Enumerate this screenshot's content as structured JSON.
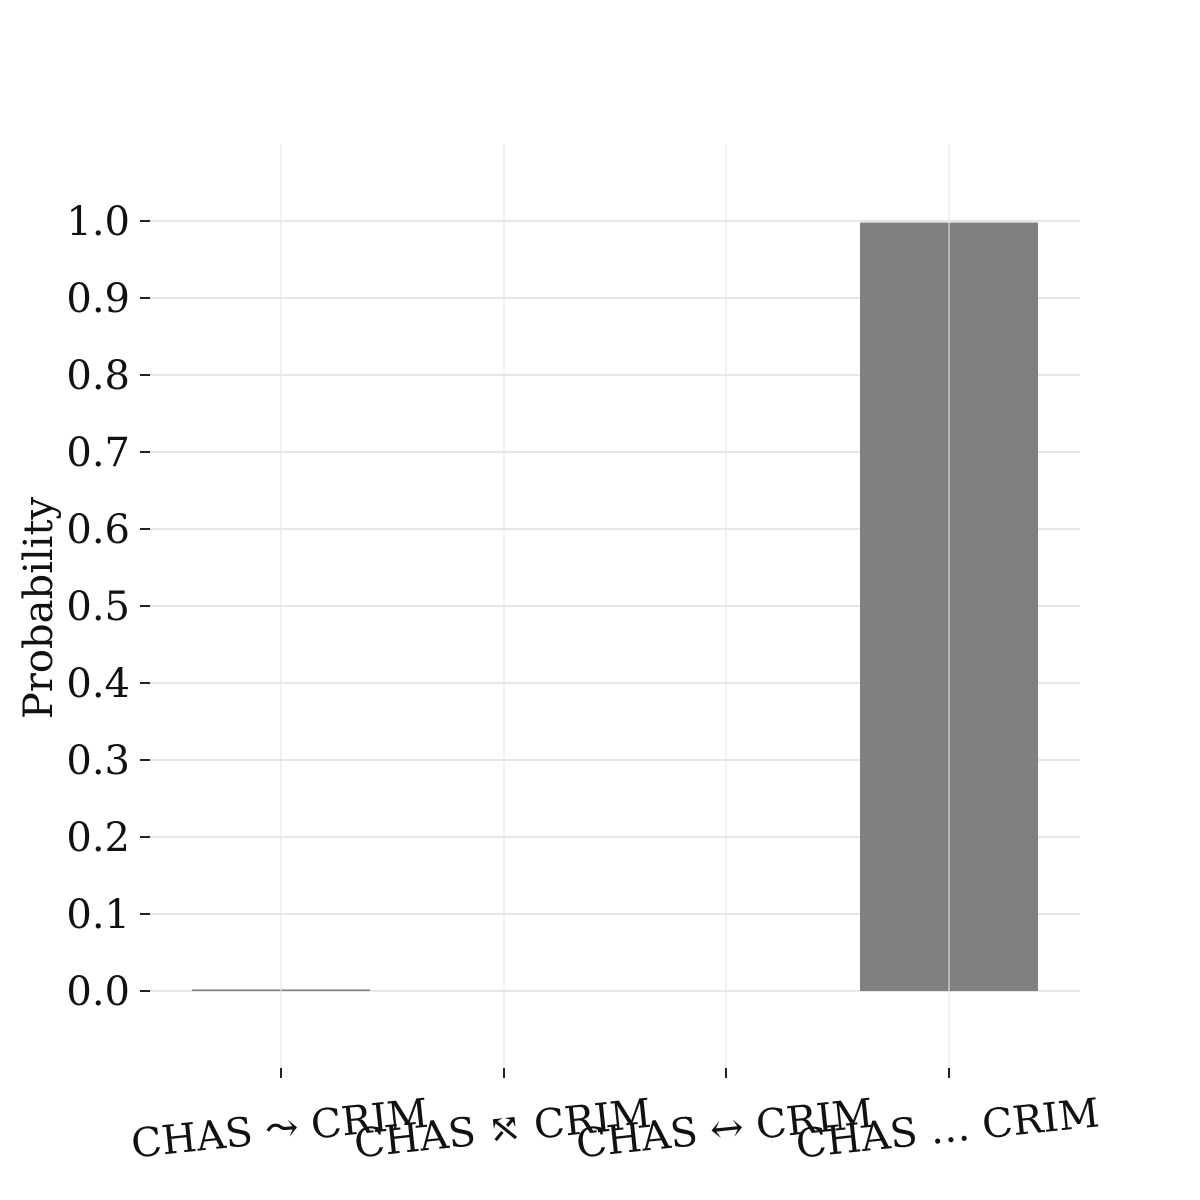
{
  "chart_data": {
    "type": "bar",
    "title": "",
    "xlabel": "",
    "ylabel": "Probability",
    "ylim": [
      0,
      1.0
    ],
    "yticks": [
      0.0,
      0.1,
      0.2,
      0.3,
      0.4,
      0.5,
      0.6,
      0.7,
      0.8,
      0.9,
      1.0
    ],
    "ytick_labels": [
      "0.0",
      "0.1",
      "0.2",
      "0.3",
      "0.4",
      "0.5",
      "0.6",
      "0.7",
      "0.8",
      "0.9",
      "1.0"
    ],
    "categories": [
      "CHAS ⤳ CRIM",
      "CHAS ⤲ CRIM",
      "CHAS ↔ CRIM",
      "CHAS … CRIM"
    ],
    "values": [
      0.002,
      0.0,
      0.0,
      0.998
    ],
    "grid": true,
    "bar_color": "#808080",
    "grid_color": "#e6e6e6"
  }
}
